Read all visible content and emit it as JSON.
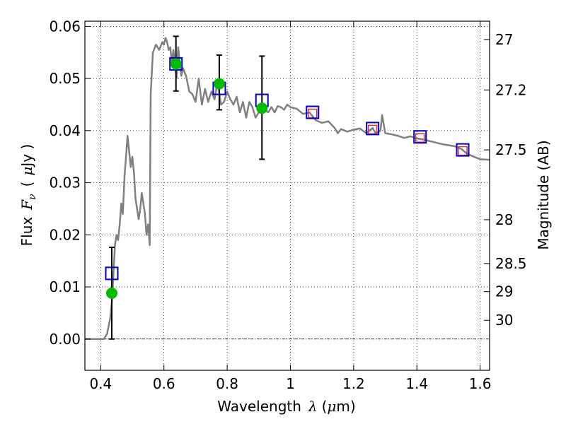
{
  "chart_data": {
    "type": "scatter",
    "xlabel": {
      "prefix": "Wavelength",
      "symbol": "λ",
      "unit_open": "(",
      "unit_mu": "μ",
      "unit_rest": "m)"
    },
    "ylabel": {
      "prefix": "Flux",
      "symbol": "F",
      "subscript": "ν",
      "unit_open": "(",
      "unit_mu": "μ",
      "unit_rest": "Jy )"
    },
    "y2label": "Magnitude (AB)",
    "xlim": [
      0.35,
      1.63
    ],
    "ylim": [
      -0.006,
      0.061
    ],
    "xticks": [
      0.4,
      0.6,
      0.8,
      1.0,
      1.2,
      1.4,
      1.6
    ],
    "xtick_labels": [
      "0.4",
      "0.6",
      "0.8",
      "1",
      "1.2",
      "1.4",
      "1.6"
    ],
    "yticks": [
      0.0,
      0.01,
      0.02,
      0.03,
      0.04,
      0.05,
      0.06
    ],
    "ytick_labels": [
      "0.00",
      "0.01",
      "0.02",
      "0.03",
      "0.04",
      "0.05",
      "0.06"
    ],
    "y2ticks": [
      {
        "label": "27",
        "flux": 0.0575
      },
      {
        "label": "27.2",
        "flux": 0.0478
      },
      {
        "label": "27.5",
        "flux": 0.0363
      },
      {
        "label": "28",
        "flux": 0.0229
      },
      {
        "label": "28.5",
        "flux": 0.0145
      },
      {
        "label": "29",
        "flux": 0.0091
      },
      {
        "label": "30",
        "flux": 0.0036
      }
    ],
    "grid": true,
    "sed_model": {
      "color": "#808080",
      "x": [
        0.35,
        0.41,
        0.42,
        0.43,
        0.435,
        0.44,
        0.445,
        0.45,
        0.455,
        0.46,
        0.465,
        0.47,
        0.475,
        0.48,
        0.485,
        0.49,
        0.495,
        0.5,
        0.505,
        0.51,
        0.515,
        0.52,
        0.525,
        0.53,
        0.535,
        0.54,
        0.545,
        0.55,
        0.555,
        0.558,
        0.565,
        0.575,
        0.585,
        0.595,
        0.6,
        0.605,
        0.61,
        0.615,
        0.62,
        0.625,
        0.63,
        0.635,
        0.64,
        0.645,
        0.65,
        0.655,
        0.66,
        0.67,
        0.68,
        0.69,
        0.7,
        0.71,
        0.72,
        0.73,
        0.74,
        0.75,
        0.76,
        0.77,
        0.78,
        0.79,
        0.8,
        0.81,
        0.82,
        0.83,
        0.84,
        0.85,
        0.86,
        0.87,
        0.88,
        0.89,
        0.9,
        0.91,
        0.92,
        0.93,
        0.94,
        0.95,
        0.96,
        0.97,
        0.98,
        0.99,
        1.0,
        1.02,
        1.04,
        1.06,
        1.08,
        1.1,
        1.12,
        1.14,
        1.15,
        1.16,
        1.18,
        1.2,
        1.22,
        1.24,
        1.26,
        1.27,
        1.28,
        1.285,
        1.29,
        1.3,
        1.32,
        1.34,
        1.36,
        1.38,
        1.4,
        1.42,
        1.44,
        1.46,
        1.48,
        1.5,
        1.52,
        1.54,
        1.56,
        1.58,
        1.6,
        1.63
      ],
      "y": [
        0.0,
        0.0,
        0.001,
        0.004,
        0.007,
        0.012,
        0.018,
        0.02,
        0.019,
        0.022,
        0.026,
        0.024,
        0.031,
        0.035,
        0.039,
        0.036,
        0.033,
        0.035,
        0.032,
        0.027,
        0.025,
        0.023,
        0.025,
        0.028,
        0.026,
        0.024,
        0.02,
        0.022,
        0.018,
        0.047,
        0.055,
        0.0565,
        0.0555,
        0.057,
        0.0565,
        0.0578,
        0.057,
        0.0555,
        0.056,
        0.053,
        0.0555,
        0.0525,
        0.05,
        0.056,
        0.053,
        0.0505,
        0.052,
        0.0505,
        0.0475,
        0.047,
        0.0455,
        0.05,
        0.045,
        0.048,
        0.0455,
        0.0475,
        0.046,
        0.0495,
        0.045,
        0.0455,
        0.0475,
        0.046,
        0.045,
        0.0465,
        0.0435,
        0.0455,
        0.0425,
        0.0455,
        0.0445,
        0.0425,
        0.0435,
        0.045,
        0.044,
        0.0435,
        0.0445,
        0.0435,
        0.0447,
        0.0445,
        0.044,
        0.045,
        0.0445,
        0.0442,
        0.0432,
        0.0435,
        0.042,
        0.0415,
        0.0418,
        0.0405,
        0.0395,
        0.0403,
        0.0398,
        0.0402,
        0.0404,
        0.0395,
        0.0405,
        0.0395,
        0.0398,
        0.04,
        0.043,
        0.0395,
        0.0393,
        0.039,
        0.0386,
        0.0389,
        0.0385,
        0.0383,
        0.038,
        0.0377,
        0.0374,
        0.0372,
        0.037,
        0.0365,
        0.0355,
        0.035,
        0.0345,
        0.0344
      ]
    },
    "observed": {
      "color": "#00bb00",
      "points": [
        {
          "x": 0.435,
          "y": 0.0088,
          "yerr_low": 0.0088,
          "yerr_high": 0.0088
        },
        {
          "x": 0.638,
          "y": 0.0528,
          "yerr_low": 0.0052,
          "yerr_high": 0.0053
        },
        {
          "x": 0.775,
          "y": 0.049,
          "yerr_low": 0.005,
          "yerr_high": 0.0055
        },
        {
          "x": 0.91,
          "y": 0.0443,
          "yerr_low": 0.0098,
          "yerr_high": 0.01
        }
      ]
    },
    "model_photometry": {
      "color": "#0000cc",
      "points": [
        {
          "x": 0.435,
          "y": 0.0126
        },
        {
          "x": 0.638,
          "y": 0.0528
        },
        {
          "x": 0.775,
          "y": 0.0481
        },
        {
          "x": 0.91,
          "y": 0.0458
        },
        {
          "x": 1.07,
          "y": 0.0435
        },
        {
          "x": 1.26,
          "y": 0.0404
        },
        {
          "x": 1.41,
          "y": 0.0388
        },
        {
          "x": 1.545,
          "y": 0.0363
        }
      ]
    },
    "predicted": {
      "color": "#dd3333",
      "points": [
        {
          "x": 1.07,
          "y": 0.0433
        },
        {
          "x": 1.26,
          "y": 0.0402
        },
        {
          "x": 1.41,
          "y": 0.0386
        },
        {
          "x": 1.545,
          "y": 0.0361
        }
      ]
    }
  }
}
